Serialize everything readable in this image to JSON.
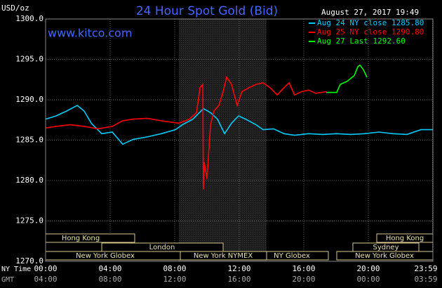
{
  "chart_data": {
    "type": "line",
    "title": "24 Hour Spot Gold (Bid)",
    "source": "www.kitco.com",
    "timestamp": "August 27, 2017 19:49",
    "ylabel": "USD/oz",
    "x_row_labels": [
      "NY Time",
      "GMT"
    ],
    "xlim": [
      0,
      24
    ],
    "ylim": [
      1270,
      1300
    ],
    "yticks": [
      {
        "value": 1270,
        "label": "1270.0"
      },
      {
        "value": 1275,
        "label": "1275.0"
      },
      {
        "value": 1280,
        "label": "1280.0"
      },
      {
        "value": 1285,
        "label": "1285.0"
      },
      {
        "value": 1290,
        "label": "1290.0"
      },
      {
        "value": 1295,
        "label": "1295.0"
      },
      {
        "value": 1300,
        "label": "1300.0"
      }
    ],
    "xticks": [
      {
        "value": 0,
        "label": "00:00"
      },
      {
        "value": 4,
        "label": "04:00"
      },
      {
        "value": 8,
        "label": "08:00"
      },
      {
        "value": 12,
        "label": "12:00"
      },
      {
        "value": 16,
        "label": "16:00"
      },
      {
        "value": 20,
        "label": "20:00"
      },
      {
        "value": 23.98,
        "label": "23:59"
      }
    ],
    "gmt_tick_labels": [
      "04:00",
      "08:00",
      "12:00",
      "16:00",
      "20:00",
      "00:00",
      "03:59"
    ],
    "grid": true,
    "session_labels": [
      "Hong Kong",
      "London",
      "New York Globex",
      "New York NYMEX",
      "NY Globex",
      "Hong Kong",
      "Sydney",
      "New York Globex"
    ],
    "series": [
      {
        "name": "Aug 24 NY close 1285.80",
        "color": "#00ccff",
        "x": [
          0,
          0.65,
          1.3,
          1.96,
          2.39,
          2.83,
          3.48,
          4.13,
          4.78,
          5.43,
          6.3,
          7.17,
          8.04,
          8.48,
          9.13,
          9.78,
          10.22,
          10.65,
          11.09,
          11.52,
          11.96,
          12.39,
          13.04,
          13.48,
          14.13,
          14.78,
          15.43,
          16.3,
          17.17,
          18.04,
          18.91,
          19.78,
          20.65,
          21.52,
          22.39,
          23.26,
          23.98
        ],
        "values": [
          1287.6,
          1288.0,
          1288.6,
          1289.3,
          1288.6,
          1287.1,
          1285.8,
          1286.0,
          1284.5,
          1285.1,
          1285.4,
          1285.8,
          1286.3,
          1286.9,
          1287.6,
          1288.9,
          1288.4,
          1287.6,
          1285.8,
          1287.1,
          1288.0,
          1287.6,
          1286.9,
          1286.3,
          1286.4,
          1285.8,
          1285.6,
          1285.8,
          1285.7,
          1285.8,
          1285.7,
          1285.8,
          1286.0,
          1285.8,
          1285.7,
          1286.3,
          1286.3
        ]
      },
      {
        "name": "Aug 25 NY close 1290.80",
        "color": "#ff0000",
        "x": [
          0,
          0.65,
          1.52,
          2.39,
          3.26,
          4.13,
          4.78,
          5.43,
          6.3,
          7.17,
          8.26,
          8.91,
          9.35,
          9.57,
          9.74,
          9.78,
          9.83,
          10.0,
          10.22,
          10.43,
          10.74,
          11.0,
          11.22,
          11.52,
          11.87,
          12.17,
          12.61,
          13.04,
          13.48,
          13.91,
          14.35,
          14.78,
          15.09,
          15.43,
          15.87,
          16.3,
          16.74,
          17.39
        ],
        "values": [
          1286.5,
          1286.7,
          1286.9,
          1286.7,
          1286.4,
          1286.7,
          1287.4,
          1287.6,
          1287.7,
          1287.4,
          1287.1,
          1287.6,
          1288.4,
          1291.5,
          1291.9,
          1278.9,
          1282.3,
          1280.2,
          1286.9,
          1288.6,
          1289.3,
          1291.0,
          1292.8,
          1291.9,
          1289.3,
          1291.0,
          1291.5,
          1291.9,
          1292.1,
          1291.5,
          1290.6,
          1291.5,
          1292.1,
          1290.6,
          1291.0,
          1291.2,
          1290.8,
          1291.0
        ]
      },
      {
        "name": "Aug 27 Last 1292.60",
        "color": "#00ff00",
        "x": [
          17.39,
          18.04,
          18.26,
          18.7,
          19.13,
          19.35,
          19.48,
          19.7,
          19.91
        ],
        "values": [
          1290.9,
          1290.9,
          1291.9,
          1292.3,
          1293.0,
          1294.1,
          1294.3,
          1293.7,
          1292.8
        ]
      }
    ]
  }
}
